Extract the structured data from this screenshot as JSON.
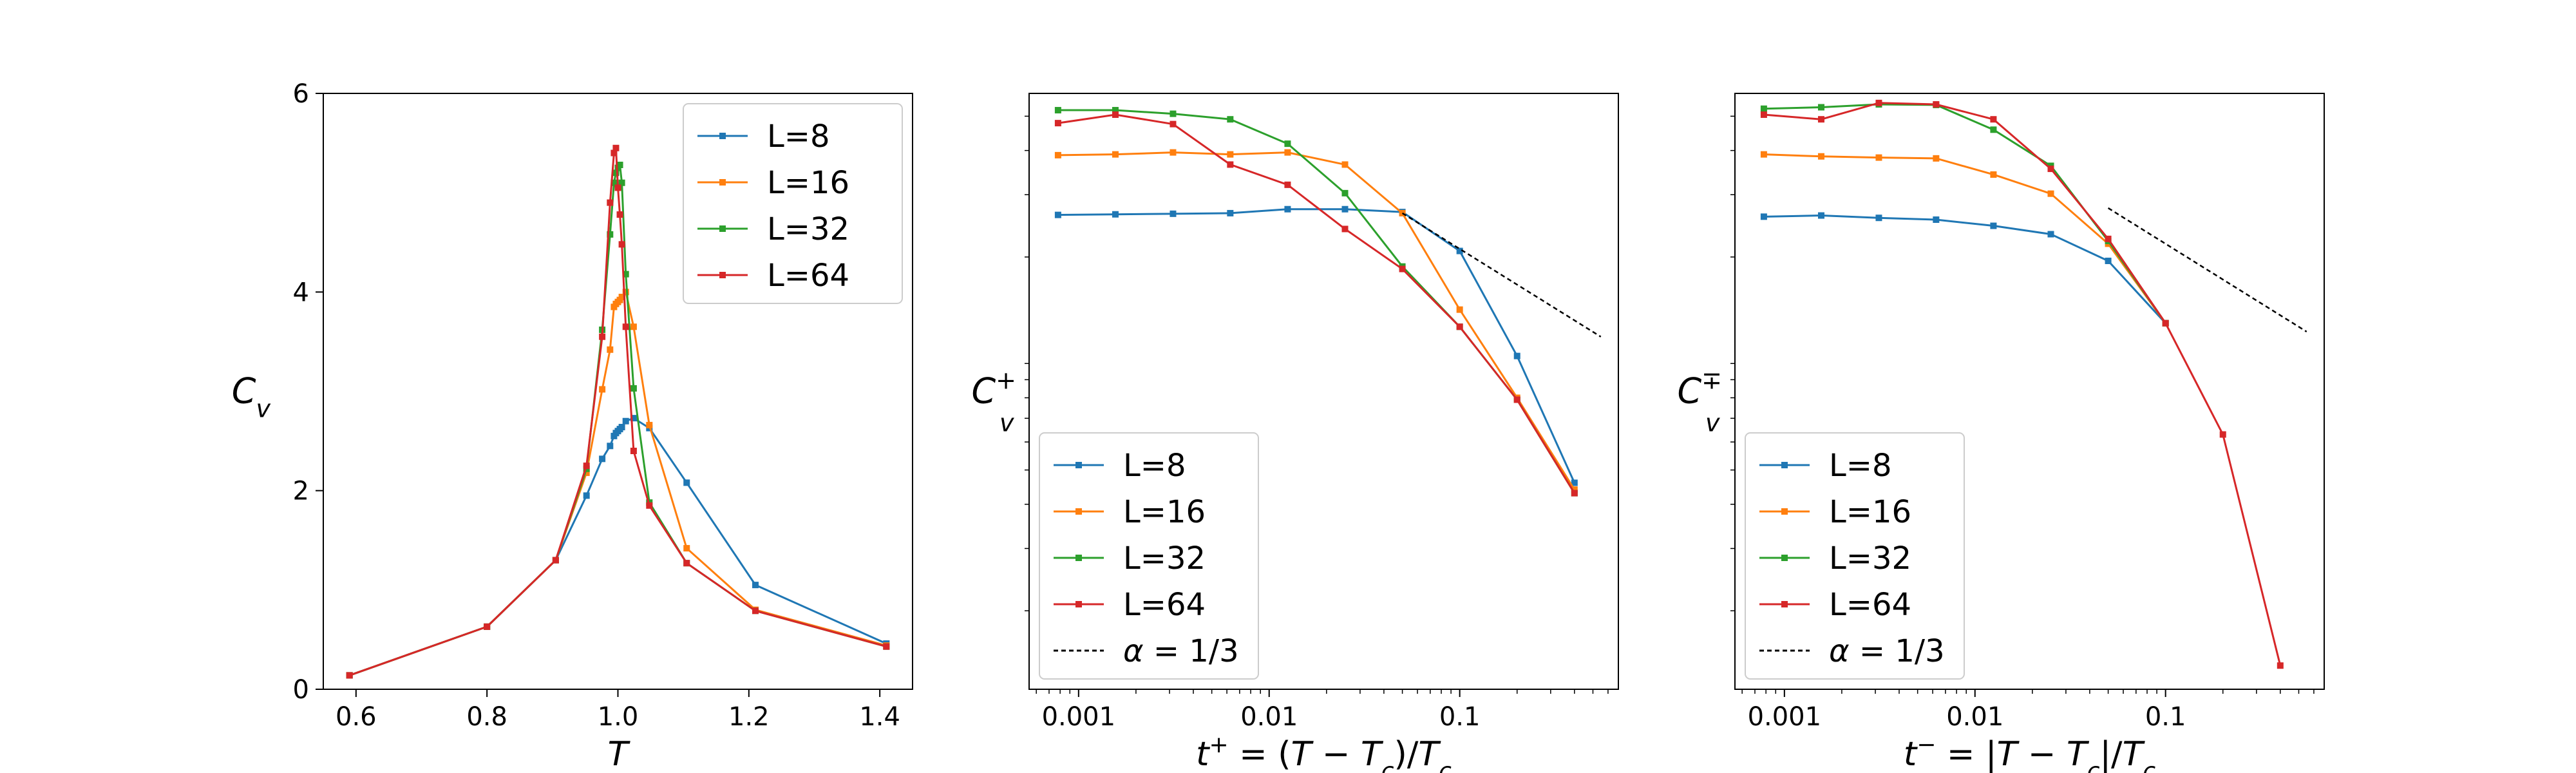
{
  "chart_data": [
    {
      "type": "line",
      "panel": "left",
      "xlabel": "T",
      "ylabel": "C_v",
      "xlim": [
        0.55,
        1.45
      ],
      "ylim": [
        0,
        6
      ],
      "xscale": "linear",
      "yscale": "linear",
      "xticks": [
        0.6,
        0.8,
        1.0,
        1.2,
        1.4
      ],
      "xtick_labels": [
        "0.6",
        "0.8",
        "1.0",
        "1.2",
        "1.4"
      ],
      "yticks": [
        0,
        2,
        4,
        6
      ],
      "ytick_labels": [
        "0",
        "2",
        "4",
        "6"
      ],
      "legend_loc": "upper right",
      "series": [
        {
          "name": "L=8",
          "color": "#1f77b4",
          "x": [
            0.59,
            0.8,
            0.905,
            0.952,
            0.976,
            0.988,
            0.994,
            0.997,
            1.0,
            1.003,
            1.006,
            1.012,
            1.024,
            1.048,
            1.105,
            1.21,
            1.41
          ],
          "y": [
            0.14,
            0.63,
            1.3,
            1.95,
            2.32,
            2.45,
            2.55,
            2.58,
            2.6,
            2.62,
            2.64,
            2.7,
            2.73,
            2.63,
            2.08,
            1.05,
            0.46
          ]
        },
        {
          "name": "L=16",
          "color": "#ff7f0e",
          "x": [
            0.59,
            0.8,
            0.905,
            0.952,
            0.976,
            0.988,
            0.994,
            0.997,
            1.0,
            1.003,
            1.006,
            1.012,
            1.024,
            1.048,
            1.105,
            1.21,
            1.41
          ],
          "y": [
            0.14,
            0.63,
            1.3,
            2.18,
            3.02,
            3.42,
            3.85,
            3.88,
            3.9,
            3.92,
            3.95,
            4.0,
            3.65,
            2.66,
            1.42,
            0.8,
            0.44
          ]
        },
        {
          "name": "L=32",
          "color": "#2ca02c",
          "x": [
            0.59,
            0.8,
            0.905,
            0.952,
            0.976,
            0.988,
            0.994,
            0.997,
            1.0,
            1.003,
            1.006,
            1.012,
            1.024,
            1.048,
            1.105,
            1.21,
            1.41
          ],
          "y": [
            0.14,
            0.63,
            1.3,
            2.22,
            3.62,
            4.58,
            5.1,
            5.2,
            5.25,
            5.28,
            5.1,
            4.18,
            3.03,
            1.88,
            1.27,
            0.79,
            0.43
          ]
        },
        {
          "name": "L=64",
          "color": "#d62728",
          "x": [
            0.59,
            0.8,
            0.905,
            0.952,
            0.976,
            0.988,
            0.994,
            0.997,
            1.0,
            1.003,
            1.006,
            1.012,
            1.024,
            1.048,
            1.105,
            1.21,
            1.41
          ],
          "y": [
            0.14,
            0.63,
            1.3,
            2.25,
            3.55,
            4.9,
            5.4,
            5.45,
            5.05,
            4.78,
            4.48,
            3.65,
            2.4,
            1.85,
            1.27,
            0.79,
            0.43
          ]
        }
      ]
    },
    {
      "type": "line",
      "panel": "middle",
      "xlabel": "t⁺ = (T − T_c)/T_c",
      "ylabel": "C_v^+",
      "xlim": [
        0.00055,
        0.68
      ],
      "ylim": [
        0,
        6
      ],
      "xscale": "log",
      "yscale": "log",
      "xticks": [
        0.001,
        0.01,
        0.1
      ],
      "xtick_labels": [
        "0.001",
        "0.01",
        "0.1"
      ],
      "legend_loc": "lower left",
      "series": [
        {
          "name": "L=8",
          "color": "#1f77b4",
          "x": [
            0.00078,
            0.00156,
            0.00313,
            0.00625,
            0.0125,
            0.025,
            0.05,
            0.1,
            0.2,
            0.4
          ],
          "y": [
            2.63,
            2.64,
            2.65,
            2.66,
            2.73,
            2.73,
            2.68,
            2.08,
            1.05,
            0.46
          ]
        },
        {
          "name": "L=16",
          "color": "#ff7f0e",
          "x": [
            0.00078,
            0.00156,
            0.00313,
            0.00625,
            0.0125,
            0.025,
            0.05,
            0.1,
            0.2,
            0.4
          ],
          "y": [
            3.88,
            3.9,
            3.95,
            3.9,
            3.95,
            3.65,
            2.66,
            1.42,
            0.8,
            0.44
          ]
        },
        {
          "name": "L=32",
          "color": "#2ca02c",
          "x": [
            0.00078,
            0.00156,
            0.00313,
            0.00625,
            0.0125,
            0.025,
            0.05,
            0.1,
            0.2,
            0.4
          ],
          "y": [
            5.2,
            5.2,
            5.08,
            4.9,
            4.18,
            3.03,
            1.88,
            1.27,
            0.79,
            0.43
          ]
        },
        {
          "name": "L=64",
          "color": "#d62728",
          "x": [
            0.00078,
            0.00156,
            0.00313,
            0.00625,
            0.0125,
            0.025,
            0.05,
            0.1,
            0.2,
            0.4
          ],
          "y": [
            4.78,
            5.05,
            4.75,
            3.65,
            3.2,
            2.4,
            1.85,
            1.27,
            0.79,
            0.43
          ]
        },
        {
          "name": "α = 1/3",
          "color": "#000000",
          "dashed": true,
          "x": [
            0.05,
            0.55
          ],
          "y": [
            2.66,
            1.19
          ]
        }
      ]
    },
    {
      "type": "line",
      "panel": "right",
      "xlabel": "t⁻ = |T − T_c|/T_c",
      "ylabel": "C_v^−",
      "xlim": [
        0.00055,
        0.68
      ],
      "ylim": [
        0,
        6
      ],
      "xscale": "log",
      "yscale": "log",
      "xticks": [
        0.001,
        0.01,
        0.1
      ],
      "xtick_labels": [
        "0.001",
        "0.01",
        "0.1"
      ],
      "legend_loc": "lower left",
      "series": [
        {
          "name": "L=8",
          "color": "#1f77b4",
          "x": [
            0.00078,
            0.00156,
            0.00313,
            0.00625,
            0.0125,
            0.025,
            0.05,
            0.1
          ],
          "y": [
            2.6,
            2.62,
            2.58,
            2.55,
            2.45,
            2.32,
            1.95,
            1.3
          ]
        },
        {
          "name": "L=16",
          "color": "#ff7f0e",
          "x": [
            0.00078,
            0.00156,
            0.00313,
            0.00625,
            0.0125,
            0.025,
            0.05,
            0.1
          ],
          "y": [
            3.9,
            3.85,
            3.82,
            3.8,
            3.42,
            3.02,
            2.18,
            1.3
          ]
        },
        {
          "name": "L=32",
          "color": "#2ca02c",
          "x": [
            0.00078,
            0.00156,
            0.00313,
            0.00625,
            0.0125,
            0.025,
            0.05,
            0.1
          ],
          "y": [
            5.25,
            5.3,
            5.4,
            5.38,
            4.58,
            3.62,
            2.22,
            1.3
          ]
        },
        {
          "name": "L=64",
          "color": "#d62728",
          "x": [
            0.00078,
            0.00156,
            0.00313,
            0.00625,
            0.0125,
            0.025,
            0.05,
            0.1,
            0.2,
            0.4
          ],
          "y": [
            5.05,
            4.9,
            5.45,
            5.4,
            4.9,
            3.55,
            2.25,
            1.3,
            0.63,
            0.14
          ]
        },
        {
          "name": "α = 1/3",
          "color": "#000000",
          "dashed": true,
          "x": [
            0.05,
            0.55
          ],
          "y": [
            2.75,
            1.23
          ]
        }
      ]
    }
  ]
}
